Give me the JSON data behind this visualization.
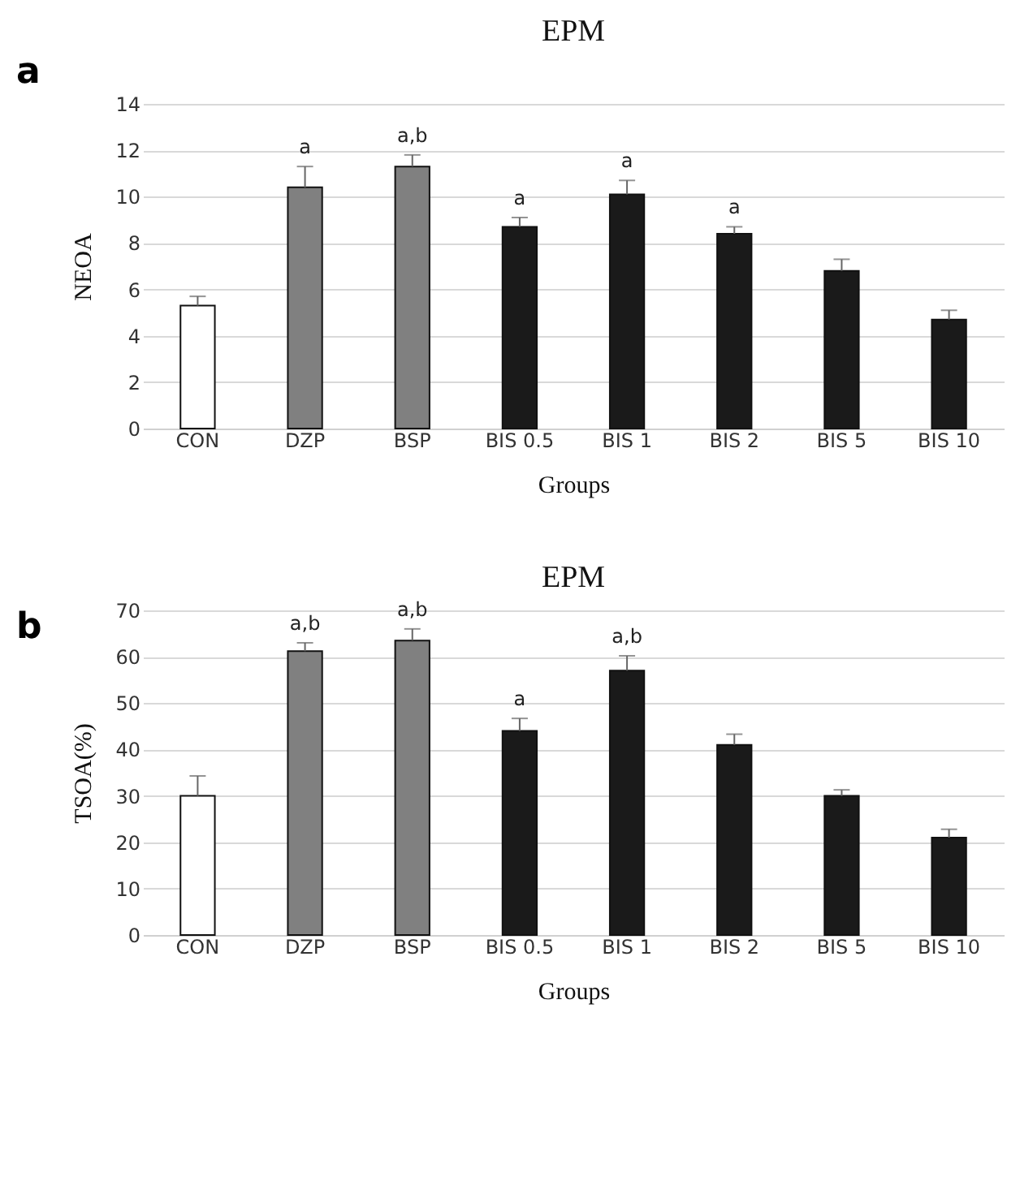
{
  "chart_data": [
    {
      "type": "bar",
      "title": "EPM",
      "xlabel": "Groups",
      "ylabel": "NEOA",
      "categories": [
        "CON",
        "DZP",
        "BSP",
        "BIS 0.5",
        "BIS 1",
        "BIS 2",
        "BIS 5",
        "BIS 10"
      ],
      "values": [
        5.3,
        10.4,
        11.3,
        8.7,
        10.1,
        8.4,
        6.8,
        4.7
      ],
      "errors": [
        [
          5.3,
          5.7
        ],
        [
          10.4,
          11.3
        ],
        [
          11.3,
          11.8
        ],
        [
          8.7,
          9.1
        ],
        [
          10.1,
          10.7
        ],
        [
          8.4,
          8.7
        ],
        [
          6.8,
          7.3
        ],
        [
          4.7,
          5.1
        ]
      ],
      "colors": [
        "#ffffff",
        "#808080",
        "#808080",
        "#1a1a1a",
        "#1a1a1a",
        "#1a1a1a",
        "#1a1a1a",
        "#1a1a1a"
      ],
      "ylim": [
        0,
        14
      ],
      "yticks": [
        0,
        2,
        4,
        6,
        8,
        10,
        12,
        14
      ],
      "grid": "y",
      "legend": false,
      "annotations": [
        "a",
        {
          "text": "a",
          "x": "DZP",
          "y": 11.3
        },
        {
          "text": "a,b",
          "x": "BSP",
          "y": 11.8
        },
        {
          "text": "a",
          "x": "BIS 0.5",
          "y": 9.1
        },
        {
          "text": "a",
          "x": "BIS 1",
          "y": 10.7
        },
        {
          "text": "a",
          "x": "BIS 2",
          "y": 8.7
        }
      ]
    },
    {
      "type": "bar",
      "title": "EPM",
      "xlabel": "Groups",
      "ylabel": "TSOA(%)",
      "categories": [
        "CON",
        "DZP",
        "BSP",
        "BIS 0.5",
        "BIS 1",
        "BIS 2",
        "BIS 5",
        "BIS 10"
      ],
      "values": [
        30,
        61.2,
        63.5,
        44,
        57,
        41,
        30,
        21
      ],
      "errors": [
        [
          30,
          34.3
        ],
        [
          61.2,
          63
        ],
        [
          63.5,
          66
        ],
        [
          44,
          46.7
        ],
        [
          57,
          60.2
        ],
        [
          41,
          43.3
        ],
        [
          30,
          31.3
        ],
        [
          21,
          22.8
        ]
      ],
      "colors": [
        "#ffffff",
        "#808080",
        "#808080",
        "#1a1a1a",
        "#1a1a1a",
        "#1a1a1a",
        "#1a1a1a",
        "#1a1a1a"
      ],
      "ylim": [
        0,
        70
      ],
      "yticks": [
        0,
        10,
        20,
        30,
        40,
        50,
        60,
        70
      ],
      "grid": "y",
      "legend": false,
      "annotations": [
        "b",
        {
          "text": "a,b",
          "x": "DZP",
          "y": 63
        },
        {
          "text": "a,b",
          "x": "BSP",
          "y": 66
        },
        {
          "text": "a",
          "x": "BIS 0.5",
          "y": 46.7
        },
        {
          "text": "a,b",
          "x": "BIS 1",
          "y": 60.2
        }
      ]
    }
  ]
}
